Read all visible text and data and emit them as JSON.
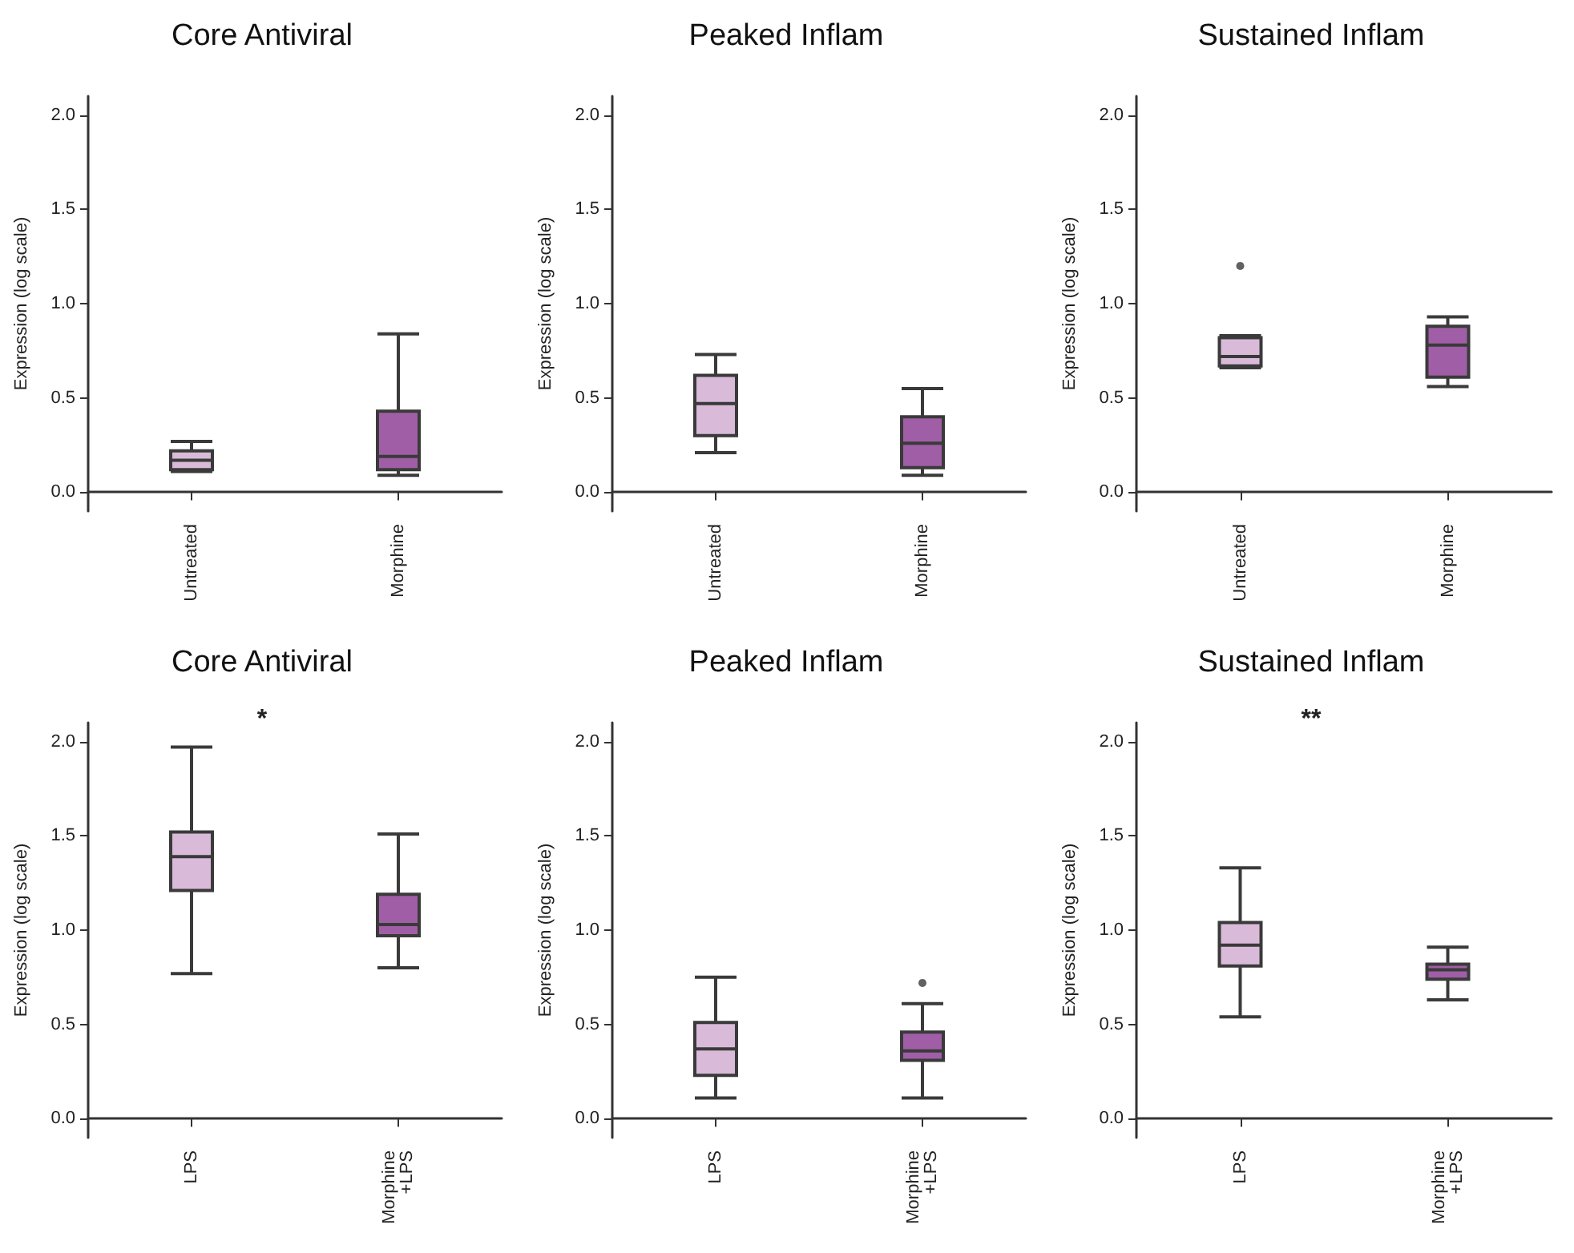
{
  "chart_data": [
    {
      "type": "box",
      "title": "Core Antiviral",
      "ylabel": "Expression (log scale)",
      "categories": [
        "Untreated",
        "Morphine"
      ],
      "colors": [
        "#d9bbd9",
        "#a05ea6"
      ],
      "boxes": [
        {
          "low": 0.11,
          "q1": 0.12,
          "median": 0.17,
          "q3": 0.22,
          "high": 0.27
        },
        {
          "low": 0.09,
          "q1": 0.12,
          "median": 0.19,
          "q3": 0.43,
          "high": 0.84
        }
      ],
      "ylim": [
        -0.1,
        2.1
      ],
      "yticks": [
        {
          "value": 0,
          "label": "0.0"
        },
        {
          "value": 0.5,
          "label": "0.5"
        },
        {
          "value": 1,
          "label": "1.0"
        },
        {
          "value": 1.5,
          "label": "1.5"
        },
        {
          "value": 2,
          "label": "2.0"
        }
      ],
      "grid": false
    },
    {
      "type": "box",
      "title": "Peaked Inflam",
      "ylabel": "Expression (log scale)",
      "categories": [
        "Untreated",
        "Morphine"
      ],
      "colors": [
        "#d9bbd9",
        "#a05ea6"
      ],
      "boxes": [
        {
          "low": 0.21,
          "q1": 0.3,
          "median": 0.47,
          "q3": 0.62,
          "high": 0.73
        },
        {
          "low": 0.09,
          "q1": 0.13,
          "median": 0.26,
          "q3": 0.4,
          "high": 0.55
        }
      ],
      "ylim": [
        -0.1,
        2.1
      ],
      "yticks": [
        {
          "value": 0,
          "label": "0.0"
        },
        {
          "value": 0.5,
          "label": "0.5"
        },
        {
          "value": 1,
          "label": "1.0"
        },
        {
          "value": 1.5,
          "label": "1.5"
        },
        {
          "value": 2,
          "label": "2.0"
        }
      ],
      "grid": false
    },
    {
      "type": "box",
      "title": "Sustained Inflam",
      "ylabel": "Expression (log scale)",
      "categories": [
        "Untreated",
        "Morphine"
      ],
      "colors": [
        "#d9bbd9",
        "#a05ea6"
      ],
      "boxes": [
        {
          "low": 0.66,
          "q1": 0.67,
          "median": 0.72,
          "q3": 0.82,
          "high": 0.83,
          "outliers": [
            1.2
          ]
        },
        {
          "low": 0.56,
          "q1": 0.61,
          "median": 0.78,
          "q3": 0.88,
          "high": 0.93
        }
      ],
      "ylim": [
        -0.1,
        2.1
      ],
      "yticks": [
        {
          "value": 0,
          "label": "0.0"
        },
        {
          "value": 0.5,
          "label": "0.5"
        },
        {
          "value": 1,
          "label": "1.0"
        },
        {
          "value": 1.5,
          "label": "1.5"
        },
        {
          "value": 2,
          "label": "2.0"
        }
      ],
      "grid": false
    },
    {
      "type": "box",
      "title": "Core Antiviral",
      "ylabel": "Expression (log scale)",
      "categories": [
        "LPS",
        "Morphine\n+LPS"
      ],
      "colors": [
        "#d9bbd9",
        "#a05ea6"
      ],
      "boxes": [
        {
          "low": 0.77,
          "q1": 1.21,
          "median": 1.39,
          "q3": 1.52,
          "high": 1.97
        },
        {
          "low": 0.8,
          "q1": 0.97,
          "median": 1.03,
          "q3": 1.19,
          "high": 1.51
        }
      ],
      "ylim": [
        -0.1,
        2.1
      ],
      "yticks": [
        {
          "value": 0,
          "label": "0.0"
        },
        {
          "value": 0.5,
          "label": "0.5"
        },
        {
          "value": 1,
          "label": "1.0"
        },
        {
          "value": 1.5,
          "label": "1.5"
        },
        {
          "value": 2,
          "label": "2.0"
        }
      ],
      "grid": false,
      "annotations": [
        "*"
      ]
    },
    {
      "type": "box",
      "title": "Peaked Inflam",
      "ylabel": "Expression (log scale)",
      "categories": [
        "LPS",
        "Morphine\n+LPS"
      ],
      "colors": [
        "#d9bbd9",
        "#a05ea6"
      ],
      "boxes": [
        {
          "low": 0.11,
          "q1": 0.23,
          "median": 0.37,
          "q3": 0.51,
          "high": 0.75
        },
        {
          "low": 0.11,
          "q1": 0.31,
          "median": 0.36,
          "q3": 0.46,
          "high": 0.61,
          "outliers": [
            0.72
          ]
        }
      ],
      "ylim": [
        -0.1,
        2.1
      ],
      "yticks": [
        {
          "value": 0,
          "label": "0.0"
        },
        {
          "value": 0.5,
          "label": "0.5"
        },
        {
          "value": 1,
          "label": "1.0"
        },
        {
          "value": 1.5,
          "label": "1.5"
        },
        {
          "value": 2,
          "label": "2.0"
        }
      ],
      "grid": false
    },
    {
      "type": "box",
      "title": "Sustained Inflam",
      "ylabel": "Expression (log scale)",
      "categories": [
        "LPS",
        "Morphine\n+LPS"
      ],
      "colors": [
        "#d9bbd9",
        "#a05ea6"
      ],
      "boxes": [
        {
          "low": 0.54,
          "q1": 0.81,
          "median": 0.92,
          "q3": 1.04,
          "high": 1.33
        },
        {
          "low": 0.63,
          "q1": 0.74,
          "median": 0.79,
          "q3": 0.82,
          "high": 0.91
        }
      ],
      "ylim": [
        -0.1,
        2.1
      ],
      "yticks": [
        {
          "value": 0,
          "label": "0.0"
        },
        {
          "value": 0.5,
          "label": "0.5"
        },
        {
          "value": 1,
          "label": "1.0"
        },
        {
          "value": 1.5,
          "label": "1.5"
        },
        {
          "value": 2,
          "label": "2.0"
        }
      ],
      "grid": false,
      "annotations": [
        "**"
      ]
    }
  ]
}
